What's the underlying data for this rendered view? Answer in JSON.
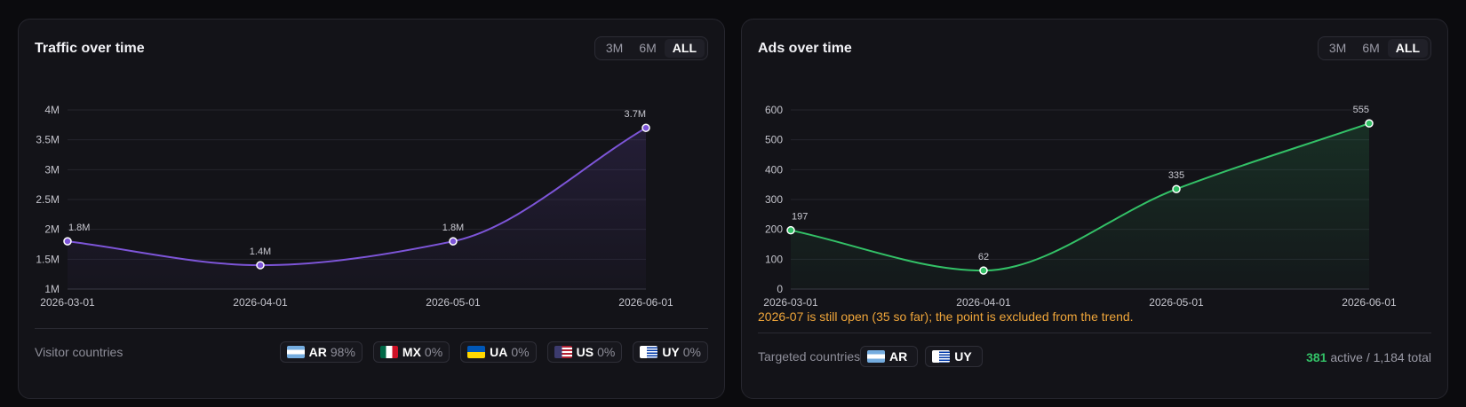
{
  "traffic": {
    "title": "Traffic over time",
    "ranges": [
      "3M",
      "6M",
      "ALL"
    ],
    "active_range": "ALL",
    "footer_label": "Visitor countries",
    "countries": [
      {
        "code": "AR",
        "pct": "98%",
        "flag": "ar-flag-icon"
      },
      {
        "code": "MX",
        "pct": "0%",
        "flag": "mx-flag-icon"
      },
      {
        "code": "UA",
        "pct": "0%",
        "flag": "ua-flag-icon"
      },
      {
        "code": "US",
        "pct": "0%",
        "flag": "us-flag-icon"
      },
      {
        "code": "UY",
        "pct": "0%",
        "flag": "uy-flag-icon"
      }
    ]
  },
  "ads": {
    "title": "Ads over time",
    "ranges": [
      "3M",
      "6M",
      "ALL"
    ],
    "active_range": "ALL",
    "note": "2026-07 is still open (35 so far); the point is excluded from the trend.",
    "footer_label": "Targeted countries",
    "countries": [
      {
        "code": "AR",
        "flag": "ar-flag-icon"
      },
      {
        "code": "UY",
        "flag": "uy-flag-icon"
      }
    ],
    "active_count": "381",
    "summary_rest": "active / 1,184 total"
  },
  "chart_data": [
    {
      "type": "line",
      "title": "Traffic over time",
      "x": [
        "2026-03-01",
        "2026-04-01",
        "2026-05-01",
        "2026-06-01"
      ],
      "values": [
        1800000,
        1400000,
        1800000,
        3700000
      ],
      "data_labels": [
        "1.8M",
        "1.4M",
        "1.8M",
        "3.7M"
      ],
      "ylim": [
        1000000,
        4000000
      ],
      "yticks": [
        1000000,
        1500000,
        2000000,
        2500000,
        3000000,
        3500000,
        4000000
      ],
      "ytick_labels": [
        "1M",
        "1.5M",
        "2M",
        "2.5M",
        "3M",
        "3.5M",
        "4M"
      ],
      "grid": true,
      "color": "#7d55d8"
    },
    {
      "type": "line",
      "title": "Ads over time",
      "x": [
        "2026-03-01",
        "2026-04-01",
        "2026-05-01",
        "2026-06-01"
      ],
      "values": [
        197,
        62,
        335,
        555
      ],
      "data_labels": [
        "197",
        "62",
        "335",
        "555"
      ],
      "ylim": [
        0,
        600
      ],
      "yticks": [
        0,
        100,
        200,
        300,
        400,
        500,
        600
      ],
      "ytick_labels": [
        "0",
        "100",
        "200",
        "300",
        "400",
        "500",
        "600"
      ],
      "grid": true,
      "color": "#33c167"
    }
  ]
}
